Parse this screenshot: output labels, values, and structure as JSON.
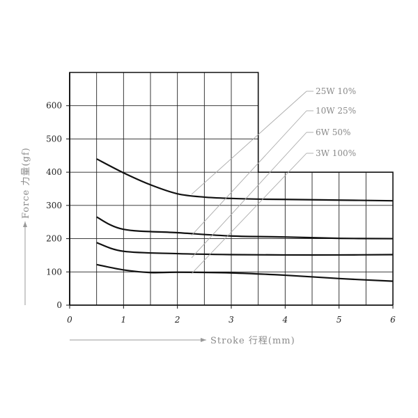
{
  "chart_data": {
    "type": "line",
    "xlabel": "Stroke 行程(mm)",
    "ylabel": "Force 力量(gf)",
    "xlim": [
      0,
      6
    ],
    "ylim": [
      0,
      700
    ],
    "x_ticks": [
      "0",
      "1",
      "2",
      "3",
      "4",
      "5",
      "6"
    ],
    "y_ticks": [
      "0",
      "100",
      "200",
      "300",
      "400",
      "500",
      "600"
    ],
    "grid": true,
    "series": [
      {
        "name": "25W 10%",
        "x": [
          0.5,
          1.0,
          1.5,
          2.0,
          2.5,
          3.0,
          3.5,
          4.0,
          5.0,
          6.0
        ],
        "y": [
          440,
          398,
          362,
          335,
          325,
          321,
          319,
          318,
          316,
          314
        ]
      },
      {
        "name": "10W 25%",
        "x": [
          0.5,
          1.0,
          2.0,
          3.0,
          4.0,
          5.0,
          6.0
        ],
        "y": [
          265,
          228,
          218,
          208,
          205,
          201,
          200
        ]
      },
      {
        "name": "6W 50%",
        "x": [
          0.5,
          1.0,
          2.0,
          3.0,
          4.0,
          5.0,
          6.0
        ],
        "y": [
          188,
          162,
          155,
          152,
          151,
          151,
          152
        ]
      },
      {
        "name": "3W 100%",
        "x": [
          0.5,
          1.0,
          1.5,
          2.0,
          3.0,
          4.0,
          5.0,
          6.0
        ],
        "y": [
          122,
          106,
          98,
          99,
          97,
          90,
          80,
          72
        ]
      }
    ]
  }
}
